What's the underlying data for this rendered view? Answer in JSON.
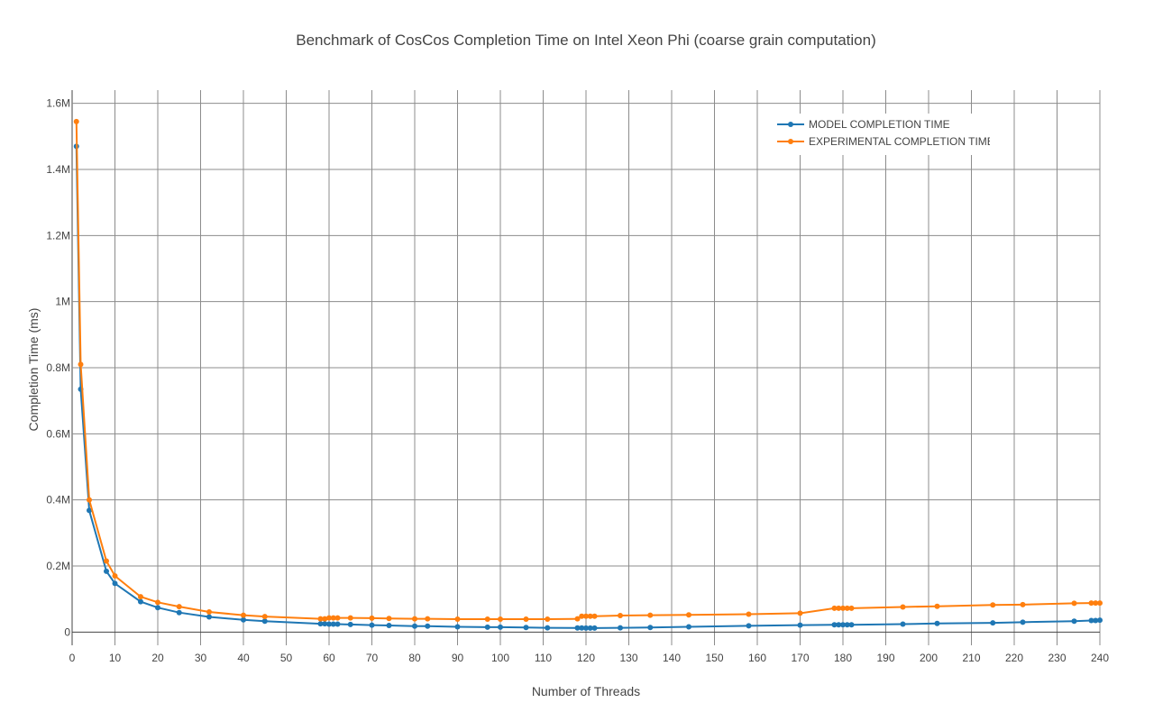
{
  "chart_data": {
    "type": "line",
    "title": "Benchmark of CosCos Completion Time on Intel Xeon Phi (coarse grain computation)",
    "xlabel": "Number of Threads",
    "ylabel": "Completion Time (ms)",
    "xlim": [
      0,
      240
    ],
    "ylim": [
      -40000,
      1640000
    ],
    "x_ticks": [
      0,
      10,
      20,
      30,
      40,
      50,
      60,
      70,
      80,
      90,
      100,
      110,
      120,
      130,
      140,
      150,
      160,
      170,
      180,
      190,
      200,
      210,
      220,
      230,
      240
    ],
    "y_ticks": [
      0,
      200000,
      400000,
      600000,
      800000,
      1000000,
      1200000,
      1400000,
      1600000
    ],
    "y_tick_labels": [
      "0",
      "0.2M",
      "0.4M",
      "0.6M",
      "0.8M",
      "1M",
      "1.2M",
      "1.4M",
      "1.6M"
    ],
    "grid": true,
    "legend_position": "top-right",
    "series": [
      {
        "name": "MODEL COMPLETION TIME",
        "color": "#1f77b4",
        "x": [
          1,
          2,
          4,
          8,
          10,
          16,
          20,
          25,
          32,
          40,
          45,
          58,
          59,
          60,
          61,
          62,
          65,
          70,
          74,
          80,
          83,
          90,
          97,
          100,
          106,
          111,
          118,
          119,
          120,
          121,
          122,
          128,
          135,
          144,
          158,
          170,
          178,
          179,
          180,
          181,
          182,
          194,
          202,
          215,
          222,
          234,
          238,
          239,
          240
        ],
        "y": [
          1470000,
          735000,
          368000,
          184000,
          147000,
          92000,
          74000,
          59000,
          46000,
          37000,
          33000,
          25000,
          25000,
          24000,
          24000,
          24000,
          23000,
          21000,
          20000,
          18000,
          18000,
          16000,
          15000,
          15000,
          14000,
          13000,
          12500,
          12500,
          12300,
          12200,
          12100,
          13000,
          14000,
          16000,
          19000,
          21000,
          22000,
          22000,
          22000,
          22000,
          22000,
          24000,
          26000,
          28000,
          30000,
          33000,
          35000,
          35000,
          36000
        ]
      },
      {
        "name": "EXPERIMENTAL COMPLETION TIME",
        "color": "#ff7f0e",
        "x": [
          1,
          2,
          4,
          8,
          10,
          16,
          20,
          25,
          32,
          40,
          45,
          58,
          59,
          60,
          61,
          62,
          65,
          70,
          74,
          80,
          83,
          90,
          97,
          100,
          106,
          111,
          118,
          119,
          120,
          121,
          122,
          128,
          135,
          144,
          158,
          170,
          178,
          179,
          180,
          181,
          182,
          194,
          202,
          215,
          222,
          234,
          238,
          239,
          240
        ],
        "y": [
          1545000,
          810000,
          400000,
          215000,
          170000,
          107000,
          90000,
          77000,
          61000,
          51000,
          47000,
          40000,
          40000,
          43000,
          43000,
          43000,
          43000,
          42000,
          41000,
          40000,
          40000,
          39000,
          39000,
          39000,
          39000,
          39000,
          40000,
          48000,
          48000,
          48000,
          48000,
          50000,
          51000,
          52000,
          54000,
          57000,
          72000,
          72000,
          72000,
          72000,
          72000,
          76000,
          78000,
          82000,
          83000,
          87000,
          88000,
          88000,
          88000
        ]
      }
    ]
  }
}
